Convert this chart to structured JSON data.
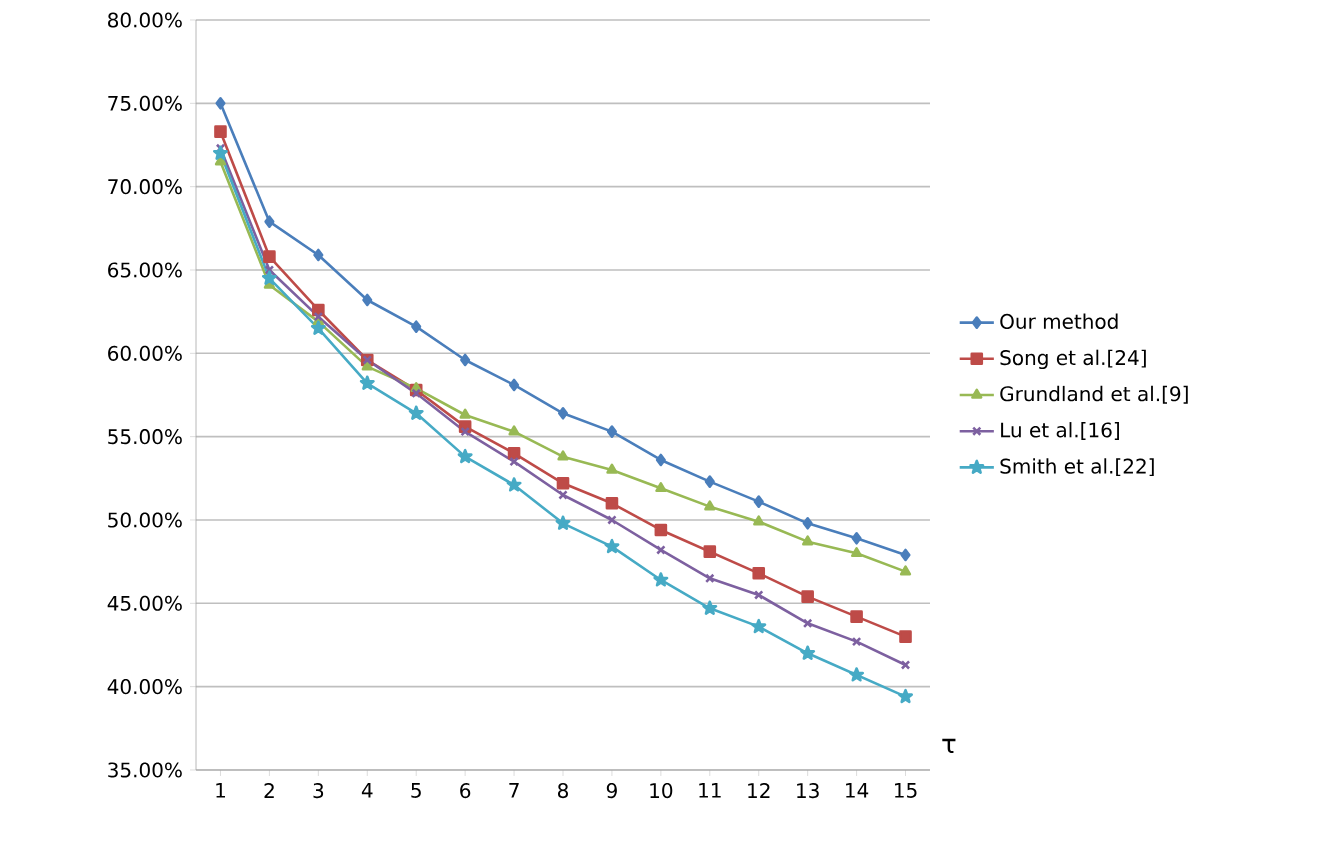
{
  "chart_data": {
    "type": "line",
    "xlabel": "τ",
    "categories": [
      "1",
      "2",
      "3",
      "4",
      "5",
      "6",
      "7",
      "8",
      "9",
      "10",
      "11",
      "12",
      "13",
      "14",
      "15"
    ],
    "series": [
      {
        "name": "Our method",
        "color": "#4a7ebb",
        "marker": "diamond",
        "values": [
          75.0,
          67.9,
          65.9,
          63.2,
          61.6,
          59.6,
          58.1,
          56.4,
          55.3,
          53.6,
          52.3,
          51.1,
          49.8,
          48.9,
          47.9
        ]
      },
      {
        "name": "Song et al.[24]",
        "color": "#be4b48",
        "marker": "square",
        "values": [
          73.3,
          65.8,
          62.6,
          59.6,
          57.8,
          55.6,
          54.0,
          52.2,
          51.0,
          49.4,
          48.1,
          46.8,
          45.4,
          44.2,
          43.0
        ]
      },
      {
        "name": "Grundland et al.[9]",
        "color": "#98b954",
        "marker": "triangle",
        "values": [
          71.5,
          64.1,
          61.9,
          59.2,
          57.9,
          56.3,
          55.3,
          53.8,
          53.0,
          51.9,
          50.8,
          49.9,
          48.7,
          48.0,
          46.9
        ]
      },
      {
        "name": "Lu et al.[16]",
        "color": "#7d60a0",
        "marker": "cross",
        "values": [
          72.3,
          65.0,
          62.2,
          59.6,
          57.6,
          55.3,
          53.5,
          51.5,
          50.0,
          48.2,
          46.5,
          45.5,
          43.8,
          42.7,
          41.3
        ]
      },
      {
        "name": "Smith et al.[22]",
        "color": "#46aac5",
        "marker": "star",
        "values": [
          72.0,
          64.5,
          61.5,
          58.2,
          56.4,
          53.8,
          52.1,
          49.8,
          48.4,
          46.4,
          44.7,
          43.6,
          42.0,
          40.7,
          39.4
        ]
      }
    ],
    "ylim": [
      35,
      80
    ],
    "yticks": [
      {
        "value": 35,
        "label": "35.00%"
      },
      {
        "value": 40,
        "label": "40.00%"
      },
      {
        "value": 45,
        "label": "45.00%"
      },
      {
        "value": 50,
        "label": "50.00%"
      },
      {
        "value": 55,
        "label": "55.00%"
      },
      {
        "value": 60,
        "label": "60.00%"
      },
      {
        "value": 65,
        "label": "65.00%"
      },
      {
        "value": 70,
        "label": "70.00%"
      },
      {
        "value": 75,
        "label": "75.00%"
      },
      {
        "value": 80,
        "label": "80.00%"
      }
    ],
    "grid": "y",
    "legend": "right"
  }
}
